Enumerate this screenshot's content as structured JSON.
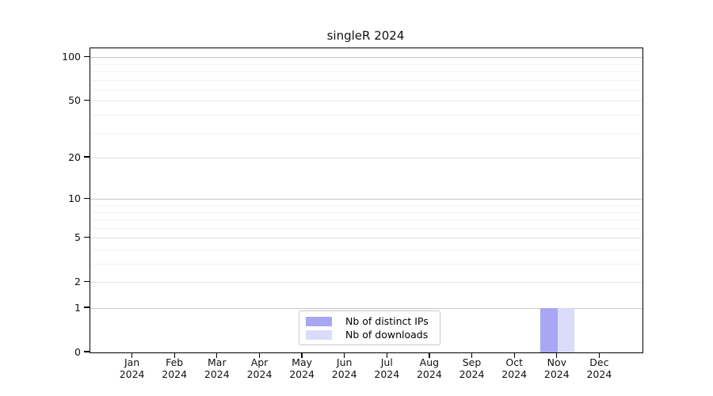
{
  "chart_data": {
    "type": "bar",
    "title": "singleR 2024",
    "categories": [
      "Jan",
      "Feb",
      "Mar",
      "Apr",
      "May",
      "Jun",
      "Jul",
      "Aug",
      "Sep",
      "Oct",
      "Nov",
      "Dec"
    ],
    "tick_year": "2024",
    "series": [
      {
        "name": "Nb of distinct IPs",
        "color": "#a7a7f3",
        "values": [
          0,
          0,
          0,
          0,
          0,
          0,
          0,
          0,
          0,
          0,
          1,
          0
        ]
      },
      {
        "name": "Nb of downloads",
        "color": "#dbdbfa",
        "values": [
          0,
          0,
          0,
          0,
          0,
          0,
          0,
          0,
          0,
          0,
          1,
          0
        ]
      }
    ],
    "xlabel": "",
    "ylabel": "",
    "yscale": "log1p",
    "ylim": [
      0,
      115
    ],
    "yticks": [
      0,
      1,
      2,
      5,
      10,
      20,
      50,
      100
    ],
    "grid": {
      "major_values": [
        1,
        10,
        100
      ],
      "labeled_minor_values": [
        2,
        5,
        20,
        50
      ],
      "minor_values": [
        3,
        4,
        6,
        7,
        8,
        9,
        30,
        40,
        60,
        70,
        80,
        90
      ],
      "major_color": "#c6c6c6",
      "labeled_minor_color": "#e2e2e2",
      "minor_color": "#f2f2f2"
    },
    "legend": {
      "position": "inside-lower-center"
    }
  }
}
